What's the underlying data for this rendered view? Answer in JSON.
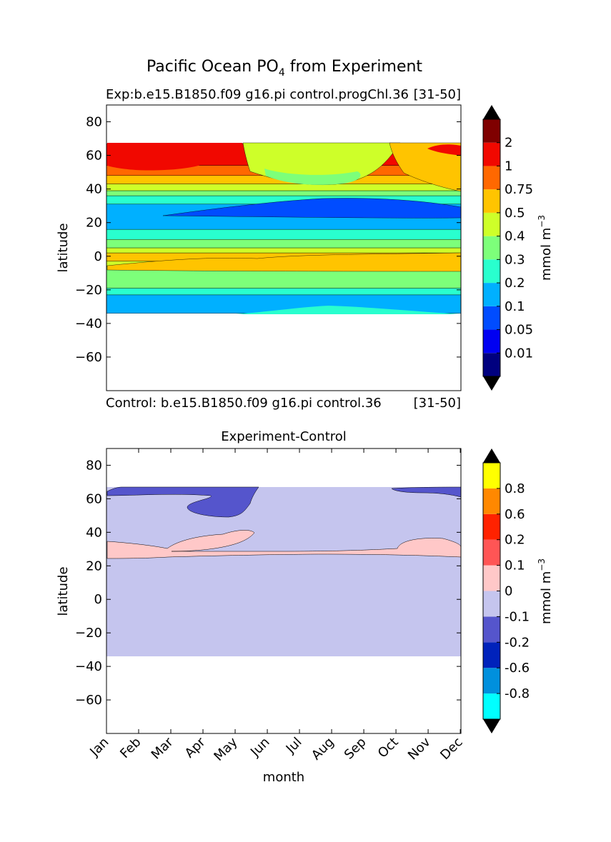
{
  "figure": {
    "title": "Pacific Ocean PO",
    "title_sub": "4",
    "title_suffix": " from Experiment"
  },
  "chart_data": [
    {
      "type": "heatmap",
      "title_left": "Exp:b.e15.B1850.f09 g16.pi control.progChl.36",
      "title_right": "[31-50]",
      "bottom_left": "Control: b.e15.B1850.f09 g16.pi control.36",
      "bottom_right": "[31-50]",
      "ylabel": "latitude",
      "xlabel": "",
      "ylim": [
        -80,
        90
      ],
      "yticks": [
        80,
        60,
        40,
        20,
        0,
        -20,
        -40,
        -60
      ],
      "ytick_labels": [
        "80",
        "60",
        "40",
        "20",
        "0",
        "−20",
        "−40",
        "−60"
      ],
      "data_lat_range": [
        -34,
        67
      ],
      "colorbar": {
        "label": "mmol m",
        "label_sup": "−3",
        "levels": [
          "0.01",
          "0.05",
          "0.1",
          "0.2",
          "0.3",
          "0.4",
          "0.5",
          "0.75",
          "1",
          "2"
        ],
        "colors": [
          "#00007f",
          "#0000f1",
          "#004cff",
          "#00b0ff",
          "#29ffce",
          "#7dff7a",
          "#ceff29",
          "#ffc400",
          "#ff6800",
          "#f10800",
          "#7f0000"
        ],
        "extend_low": "#000000",
        "extend_high": "#000000"
      },
      "bands": [
        {
          "lat": [
            -34,
            -23
          ],
          "color": "#00b0ff"
        },
        {
          "lat": [
            -23,
            -19
          ],
          "color": "#29ffce"
        },
        {
          "lat": [
            -19,
            -6
          ],
          "color": "#7dff7a"
        },
        {
          "lat": [
            -6,
            -3
          ],
          "color": "#ceff29"
        },
        {
          "lat": [
            -3,
            2
          ],
          "color": "#ffc400"
        },
        {
          "lat": [
            2,
            5
          ],
          "color": "#ceff29"
        },
        {
          "lat": [
            5,
            10
          ],
          "color": "#7dff7a"
        },
        {
          "lat": [
            10,
            16
          ],
          "color": "#29ffce"
        },
        {
          "lat": [
            16,
            31
          ],
          "color": "#00b0ff"
        },
        {
          "lat": [
            31,
            36
          ],
          "color": "#29ffce"
        },
        {
          "lat": [
            36,
            39
          ],
          "color": "#7dff7a"
        },
        {
          "lat": [
            39,
            43
          ],
          "color": "#ceff29"
        },
        {
          "lat": [
            43,
            48
          ],
          "color": "#ffc400"
        },
        {
          "lat": [
            48,
            54
          ],
          "color": "#ff6800"
        },
        {
          "lat": [
            54,
            67
          ],
          "color": "#f10800"
        }
      ]
    },
    {
      "type": "heatmap",
      "title": "Experiment-Control",
      "ylabel": "latitude",
      "xlabel": "month",
      "ylim": [
        -80,
        90
      ],
      "yticks": [
        80,
        60,
        40,
        20,
        0,
        -20,
        -40,
        -60
      ],
      "ytick_labels": [
        "80",
        "60",
        "40",
        "20",
        "0",
        "−20",
        "−40",
        "−60"
      ],
      "categories": [
        "Jan",
        "Feb",
        "Mar",
        "Apr",
        "May",
        "Jun",
        "Jul",
        "Aug",
        "Sep",
        "Oct",
        "Nov",
        "Dec"
      ],
      "data_lat_range": [
        -34,
        67
      ],
      "colorbar": {
        "label": "mmol m",
        "label_sup": "−3",
        "levels": [
          "-0.8",
          "-0.6",
          "-0.2",
          "-0.1",
          "0",
          "0.1",
          "0.2",
          "0.6",
          "0.8"
        ],
        "colors": [
          "#00ffff",
          "#0090dd",
          "#0022bb",
          "#5555cc",
          "#c5c5ee",
          "#ffc8c8",
          "#ff5555",
          "#ff2200",
          "#ff8800",
          "#ffff00"
        ],
        "extend_low": "#000000",
        "extend_high": "#000000"
      },
      "background_color": "#c5c5ee",
      "positive_color": "#ffc8c8",
      "negative_color": "#5555cc"
    }
  ]
}
